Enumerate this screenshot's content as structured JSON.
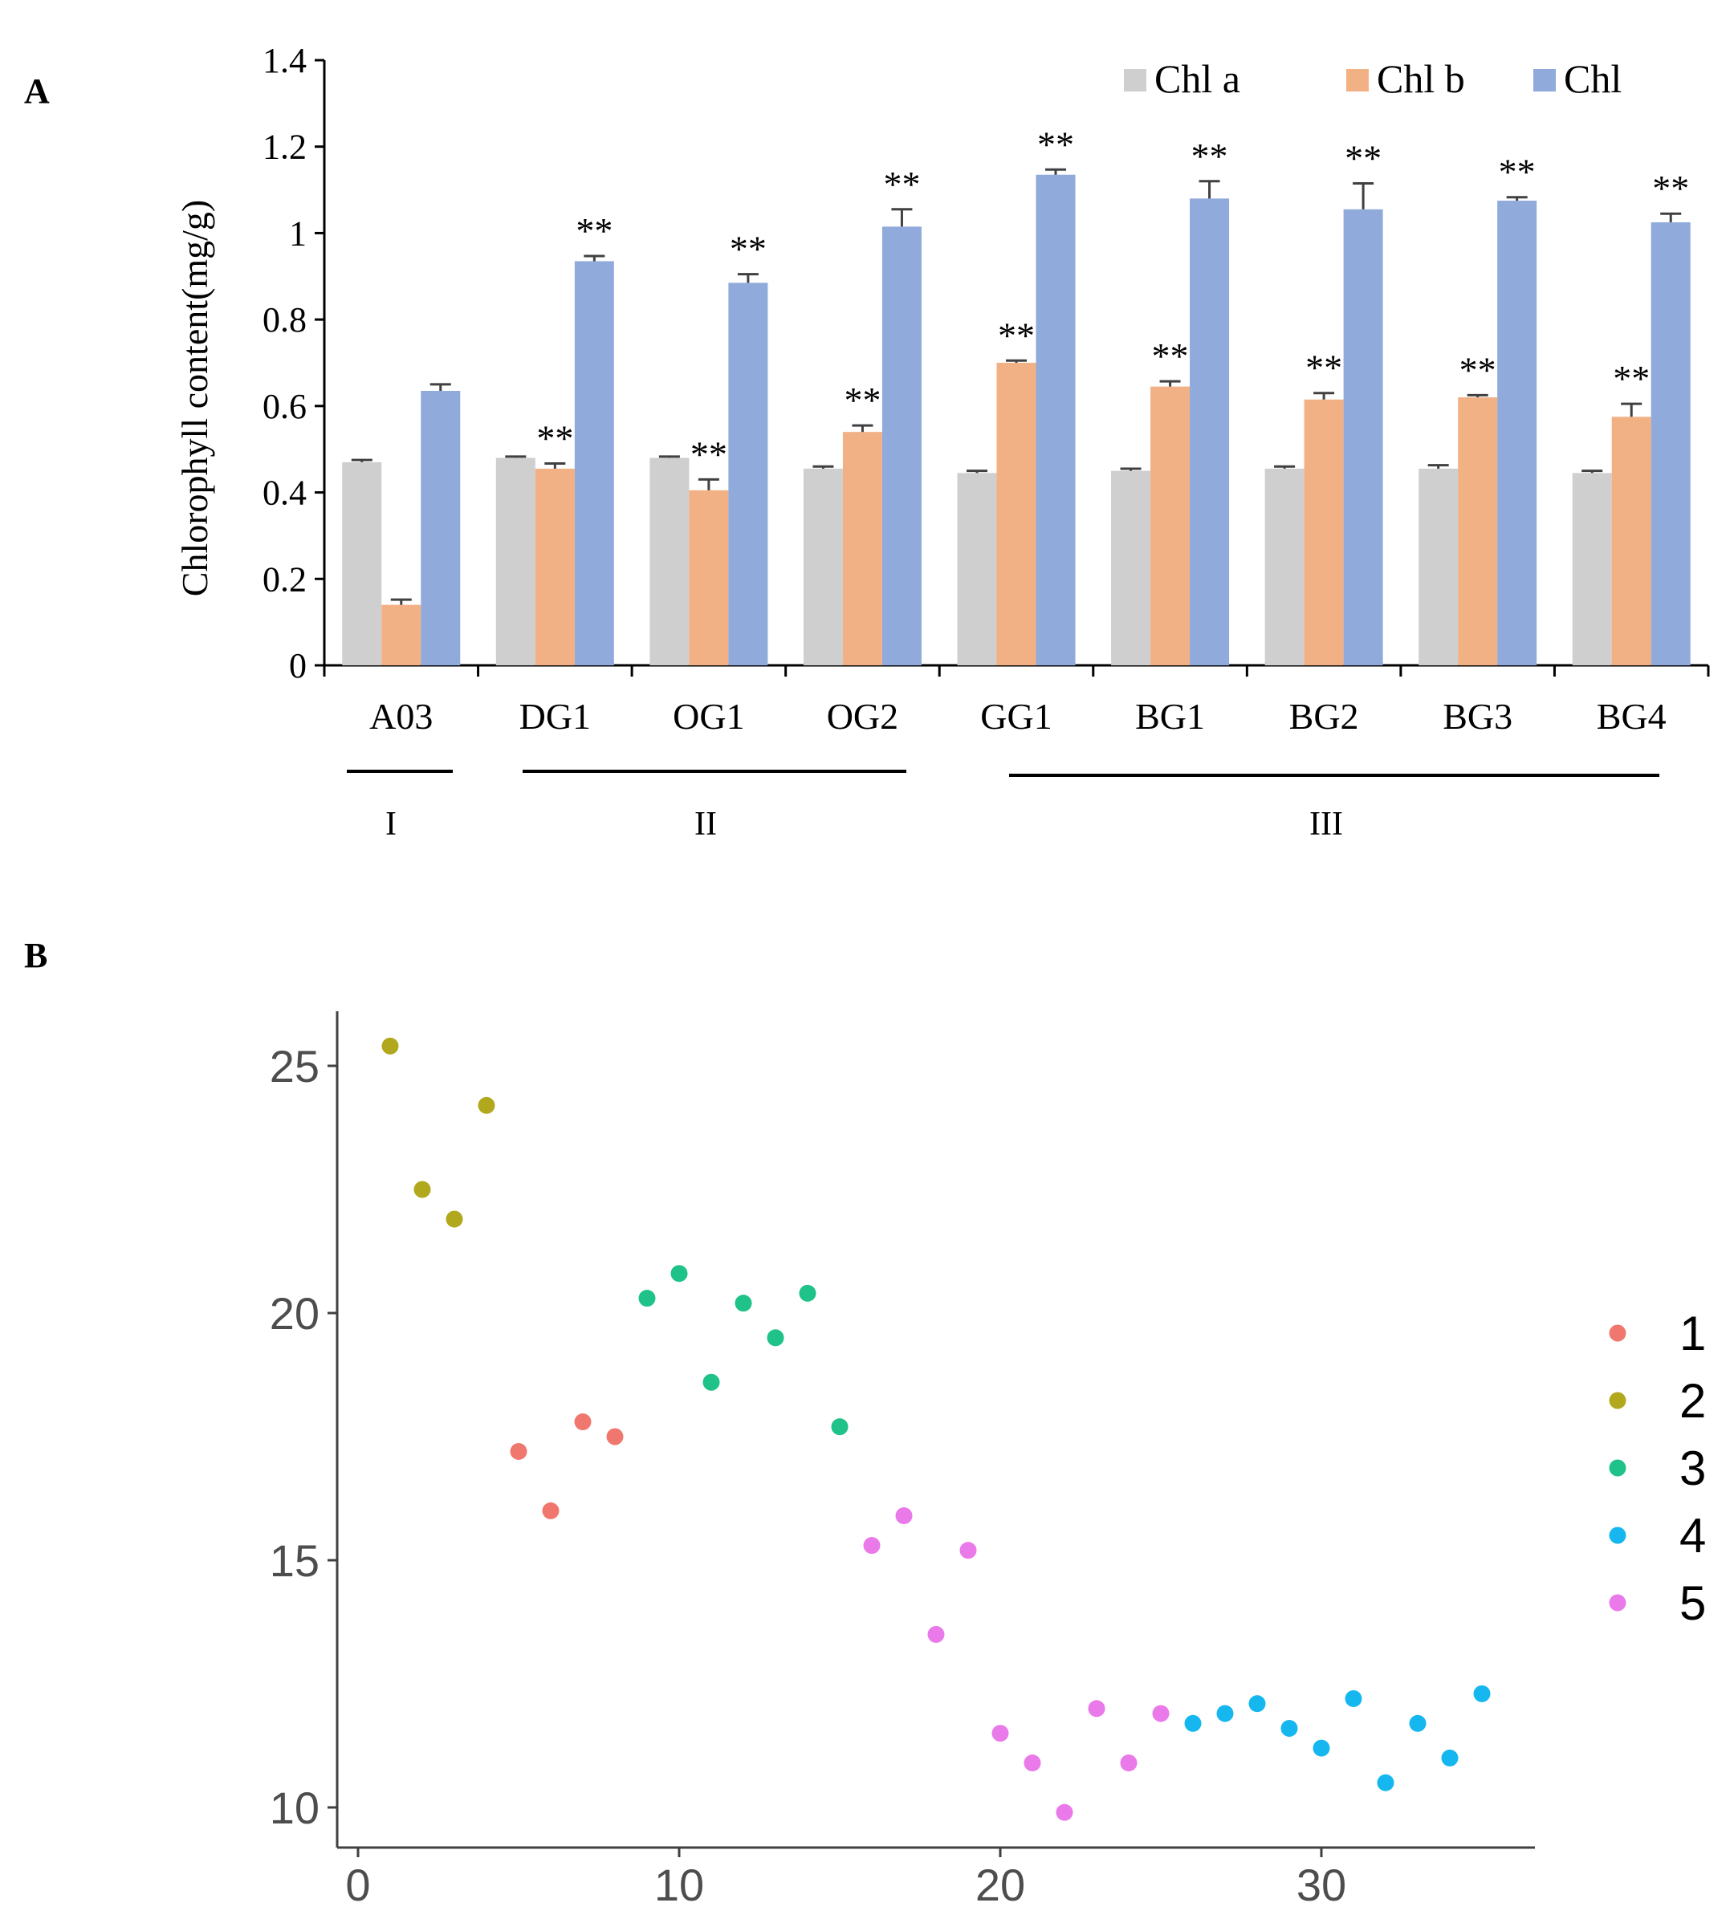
{
  "panels": {
    "a_label": "A",
    "b_label": "B"
  },
  "colors": {
    "chl_a": "#d0cfcf",
    "chl_b": "#f2b185",
    "chl": "#90aadb",
    "err": "#404040",
    "cluster1": "#f0776e",
    "cluster2": "#b1a81d",
    "cluster3": "#1fc288",
    "cluster4": "#16b7ef",
    "cluster5": "#ea79ea",
    "scatter_axis": "#404040",
    "scatter_tick_text": "#4d4d4d"
  },
  "chart_data": [
    {
      "type": "bar",
      "ylabel": "Chlorophyll content(mg/g)",
      "ylim": [
        0,
        1.4
      ],
      "yticks": [
        "0",
        "0.2",
        "0.4",
        "0.6",
        "0.8",
        "1",
        "1.2",
        "1.4"
      ],
      "categories": [
        "A03",
        "DG1",
        "OG1",
        "OG2",
        "GG1",
        "BG1",
        "BG2",
        "BG3",
        "BG4"
      ],
      "legend_position": "top-right",
      "series": [
        {
          "name": "Chl a",
          "values": [
            0.47,
            0.48,
            0.48,
            0.455,
            0.445,
            0.45,
            0.455,
            0.455,
            0.445
          ],
          "errors": [
            0.005,
            0.003,
            0.003,
            0.005,
            0.005,
            0.005,
            0.005,
            0.008,
            0.005
          ]
        },
        {
          "name": "Chl b",
          "values": [
            0.14,
            0.455,
            0.405,
            0.54,
            0.7,
            0.645,
            0.615,
            0.62,
            0.575
          ],
          "errors": [
            0.012,
            0.012,
            0.025,
            0.015,
            0.005,
            0.012,
            0.015,
            0.005,
            0.03
          ]
        },
        {
          "name": "Chl",
          "values": [
            0.635,
            0.935,
            0.885,
            1.015,
            1.135,
            1.08,
            1.055,
            1.075,
            1.025
          ],
          "errors": [
            0.015,
            0.012,
            0.02,
            0.04,
            0.012,
            0.04,
            0.06,
            0.008,
            0.02
          ]
        }
      ],
      "significance": [
        [
          "",
          "",
          ""
        ],
        [
          "",
          "**",
          "**"
        ],
        [
          "",
          "**",
          "**"
        ],
        [
          "",
          "**",
          "**"
        ],
        [
          "",
          "**",
          "**"
        ],
        [
          "",
          "**",
          "**"
        ],
        [
          "",
          "**",
          "**"
        ],
        [
          "",
          "**",
          "**"
        ],
        [
          "",
          "**",
          "**"
        ]
      ],
      "groups": [
        {
          "label": "I",
          "from": "A03",
          "to": "A03"
        },
        {
          "label": "II",
          "from": "DG1",
          "to": "OG2"
        },
        {
          "label": "III",
          "from": "GG1",
          "to": "BG4"
        }
      ]
    },
    {
      "type": "scatter",
      "xlim": [
        -0.5,
        36.5
      ],
      "ylim": [
        9.3,
        26.1
      ],
      "xticks": [
        0,
        10,
        20,
        30
      ],
      "yticks": [
        10,
        15,
        20,
        25
      ],
      "legend_position": "right",
      "series": [
        {
          "name": "1",
          "x": [
            5,
            6,
            7,
            8
          ],
          "y": [
            17.2,
            16.0,
            17.8,
            17.5
          ]
        },
        {
          "name": "2",
          "x": [
            1,
            2,
            3,
            4
          ],
          "y": [
            25.4,
            22.5,
            21.9,
            24.2
          ]
        },
        {
          "name": "3",
          "x": [
            9,
            10,
            11,
            12,
            13,
            14,
            15
          ],
          "y": [
            20.3,
            20.8,
            18.6,
            20.2,
            19.5,
            20.4,
            17.7
          ]
        },
        {
          "name": "4",
          "x": [
            26,
            27,
            28,
            29,
            30,
            31,
            32,
            33,
            34,
            35
          ],
          "y": [
            11.7,
            11.9,
            12.1,
            11.6,
            11.2,
            12.2,
            10.5,
            11.7,
            11.0,
            12.3
          ]
        },
        {
          "name": "5",
          "x": [
            16,
            17,
            18,
            19,
            20,
            21,
            22,
            23,
            24,
            25
          ],
          "y": [
            15.3,
            15.9,
            13.5,
            15.2,
            11.5,
            10.9,
            9.9,
            12.0,
            10.9,
            11.9
          ]
        }
      ]
    }
  ]
}
